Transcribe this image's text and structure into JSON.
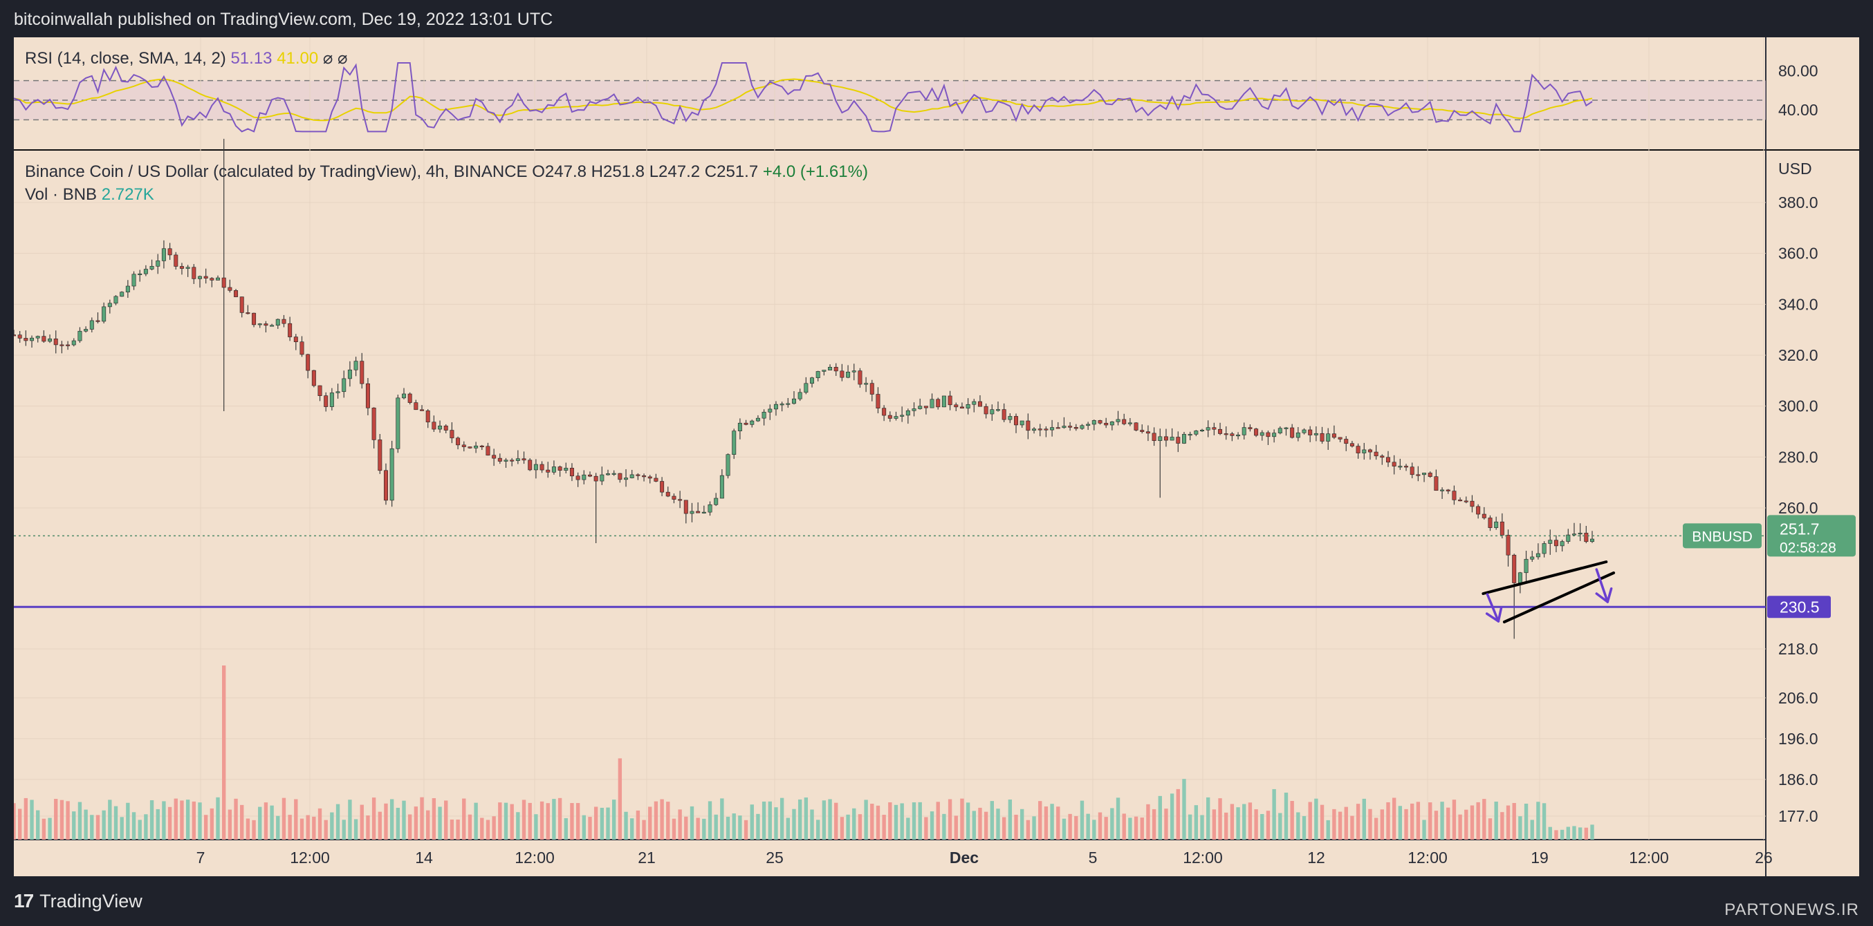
{
  "header": {
    "text": "bitcoinwallah published on TradingView.com, Dec 19, 2022 13:01 UTC"
  },
  "footer": {
    "brand": "TradingView",
    "brand_mark": "17",
    "watermark": "PARTONEWS.IR"
  },
  "rsi": {
    "label": "RSI (14, close, SMA, 14, 2)",
    "value": "51.13",
    "sma_value": "41.00",
    "icons": "⌀ ⌀",
    "ticks": [
      "80.00",
      "40.00"
    ],
    "tick_values": [
      80,
      40
    ],
    "bands": [
      70,
      50,
      30
    ],
    "colors": {
      "rsi": "#7e57c2",
      "sma": "#e8d100"
    }
  },
  "main": {
    "title": "Binance Coin / US Dollar (calculated by TradingView), 4h, BINANCE",
    "ohlc": {
      "o": "O247.8",
      "h": "H251.8",
      "l": "L247.2",
      "c": "C251.7",
      "chg": "+4.0 (+1.61%)"
    },
    "vol_label": "Vol · BNB",
    "vol_value": "2.727K",
    "currency": "USD"
  },
  "chart_data": {
    "type": "candlestick",
    "symbol": "BNBUSD",
    "timeframe": "4h",
    "y_ticks": [
      "380.0",
      "360.0",
      "340.0",
      "320.0",
      "300.0",
      "280.0",
      "260.0",
      "218.0",
      "206.0",
      "196.0",
      "186.0",
      "177.0"
    ],
    "x_ticks": [
      "7",
      "12:00",
      "14",
      "12:00",
      "21",
      "25",
      "Dec",
      "5",
      "12:00",
      "12",
      "12:00",
      "19",
      "12:00",
      "26"
    ],
    "last_price": "251.7",
    "countdown": "02:58:28",
    "support_level": "230.5",
    "support_value": 230.5,
    "colors": {
      "up": "#26a69a",
      "down": "#ef5350",
      "support": "#5b3fc4",
      "pattern": "#000000",
      "arrow": "#6a3fd0"
    },
    "price_path": [
      [
        0,
        328
      ],
      [
        10,
        325
      ],
      [
        20,
        350
      ],
      [
        25,
        360
      ],
      [
        30,
        352
      ],
      [
        35,
        348
      ],
      [
        40,
        332
      ],
      [
        45,
        334
      ],
      [
        52,
        300
      ],
      [
        57,
        318
      ],
      [
        60,
        287
      ],
      [
        62,
        262
      ],
      [
        64,
        305
      ],
      [
        70,
        292
      ],
      [
        75,
        285
      ],
      [
        80,
        281
      ],
      [
        85,
        277
      ],
      [
        90,
        275
      ],
      [
        95,
        272
      ],
      [
        100,
        272
      ],
      [
        105,
        273
      ],
      [
        110,
        265
      ],
      [
        113,
        257
      ],
      [
        117,
        262
      ],
      [
        120,
        292
      ],
      [
        125,
        298
      ],
      [
        130,
        303
      ],
      [
        135,
        315
      ],
      [
        140,
        312
      ],
      [
        143,
        305
      ],
      [
        145,
        296
      ],
      [
        150,
        300
      ],
      [
        155,
        302
      ],
      [
        160,
        300
      ],
      [
        165,
        296
      ],
      [
        170,
        290
      ],
      [
        175,
        291
      ],
      [
        180,
        295
      ],
      [
        185,
        293
      ],
      [
        190,
        287
      ],
      [
        195,
        287
      ],
      [
        200,
        291
      ],
      [
        205,
        290
      ],
      [
        210,
        290
      ],
      [
        215,
        289
      ],
      [
        220,
        287
      ],
      [
        225,
        282
      ],
      [
        230,
        278
      ],
      [
        235,
        272
      ],
      [
        240,
        264
      ],
      [
        245,
        258
      ],
      [
        248,
        252
      ],
      [
        250,
        236
      ],
      [
        252,
        244
      ],
      [
        255,
        250
      ],
      [
        258,
        251
      ],
      [
        261,
        252
      ],
      [
        263,
        251.7
      ]
    ],
    "volume_spikes": {
      "dec_big": 9.0,
      "nov25": 4.2,
      "dec12": 2.2,
      "dec17": 2.0
    },
    "rising_wedge": {
      "upper": [
        [
          1209,
          474
        ],
        [
          1308,
          441
        ]
      ],
      "lower": [
        [
          1226,
          521
        ],
        [
          1314,
          450
        ]
      ],
      "arrow_down_left": [
        [
          1212,
          470
        ],
        [
          1224,
          520
        ]
      ],
      "arrow_down_right": [
        [
          1306,
          458
        ],
        [
          1316,
          505
        ]
      ]
    }
  }
}
